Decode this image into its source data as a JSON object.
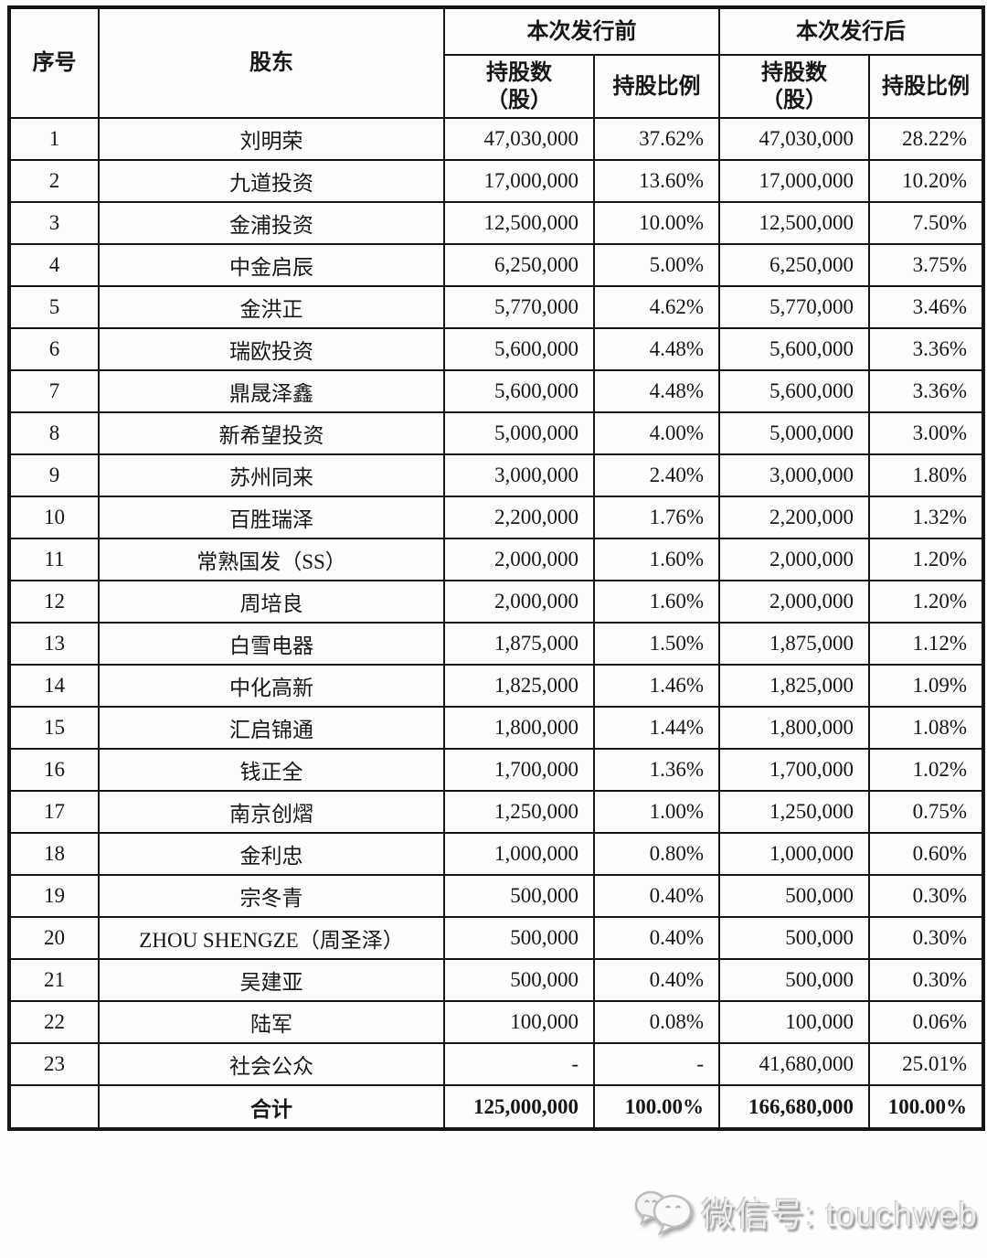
{
  "table": {
    "header": {
      "col_no": "序号",
      "col_shareholder": "股东",
      "group_before": "本次发行前",
      "group_after": "本次发行后",
      "shares_label": "持股数",
      "shares_unit": "（股）",
      "ratio_label": "持股比例"
    },
    "rows": [
      {
        "no": "1",
        "name": "刘明荣",
        "pre_shares": "47,030,000",
        "pre_ratio": "37.62%",
        "post_shares": "47,030,000",
        "post_ratio": "28.22%"
      },
      {
        "no": "2",
        "name": "九道投资",
        "pre_shares": "17,000,000",
        "pre_ratio": "13.60%",
        "post_shares": "17,000,000",
        "post_ratio": "10.20%"
      },
      {
        "no": "3",
        "name": "金浦投资",
        "pre_shares": "12,500,000",
        "pre_ratio": "10.00%",
        "post_shares": "12,500,000",
        "post_ratio": "7.50%"
      },
      {
        "no": "4",
        "name": "中金启辰",
        "pre_shares": "6,250,000",
        "pre_ratio": "5.00%",
        "post_shares": "6,250,000",
        "post_ratio": "3.75%"
      },
      {
        "no": "5",
        "name": "金洪正",
        "pre_shares": "5,770,000",
        "pre_ratio": "4.62%",
        "post_shares": "5,770,000",
        "post_ratio": "3.46%"
      },
      {
        "no": "6",
        "name": "瑞欧投资",
        "pre_shares": "5,600,000",
        "pre_ratio": "4.48%",
        "post_shares": "5,600,000",
        "post_ratio": "3.36%"
      },
      {
        "no": "7",
        "name": "鼎晟泽鑫",
        "pre_shares": "5,600,000",
        "pre_ratio": "4.48%",
        "post_shares": "5,600,000",
        "post_ratio": "3.36%"
      },
      {
        "no": "8",
        "name": "新希望投资",
        "pre_shares": "5,000,000",
        "pre_ratio": "4.00%",
        "post_shares": "5,000,000",
        "post_ratio": "3.00%"
      },
      {
        "no": "9",
        "name": "苏州同来",
        "pre_shares": "3,000,000",
        "pre_ratio": "2.40%",
        "post_shares": "3,000,000",
        "post_ratio": "1.80%"
      },
      {
        "no": "10",
        "name": "百胜瑞泽",
        "pre_shares": "2,200,000",
        "pre_ratio": "1.76%",
        "post_shares": "2,200,000",
        "post_ratio": "1.32%"
      },
      {
        "no": "11",
        "name": "常熟国发（SS）",
        "pre_shares": "2,000,000",
        "pre_ratio": "1.60%",
        "post_shares": "2,000,000",
        "post_ratio": "1.20%"
      },
      {
        "no": "12",
        "name": "周培良",
        "pre_shares": "2,000,000",
        "pre_ratio": "1.60%",
        "post_shares": "2,000,000",
        "post_ratio": "1.20%"
      },
      {
        "no": "13",
        "name": "白雪电器",
        "pre_shares": "1,875,000",
        "pre_ratio": "1.50%",
        "post_shares": "1,875,000",
        "post_ratio": "1.12%"
      },
      {
        "no": "14",
        "name": "中化高新",
        "pre_shares": "1,825,000",
        "pre_ratio": "1.46%",
        "post_shares": "1,825,000",
        "post_ratio": "1.09%"
      },
      {
        "no": "15",
        "name": "汇启锦通",
        "pre_shares": "1,800,000",
        "pre_ratio": "1.44%",
        "post_shares": "1,800,000",
        "post_ratio": "1.08%"
      },
      {
        "no": "16",
        "name": "钱正全",
        "pre_shares": "1,700,000",
        "pre_ratio": "1.36%",
        "post_shares": "1,700,000",
        "post_ratio": "1.02%"
      },
      {
        "no": "17",
        "name": "南京创熠",
        "pre_shares": "1,250,000",
        "pre_ratio": "1.00%",
        "post_shares": "1,250,000",
        "post_ratio": "0.75%"
      },
      {
        "no": "18",
        "name": "金利忠",
        "pre_shares": "1,000,000",
        "pre_ratio": "0.80%",
        "post_shares": "1,000,000",
        "post_ratio": "0.60%"
      },
      {
        "no": "19",
        "name": "宗冬青",
        "pre_shares": "500,000",
        "pre_ratio": "0.40%",
        "post_shares": "500,000",
        "post_ratio": "0.30%"
      },
      {
        "no": "20",
        "name": "ZHOU SHENGZE（周圣泽）",
        "pre_shares": "500,000",
        "pre_ratio": "0.40%",
        "post_shares": "500,000",
        "post_ratio": "0.30%"
      },
      {
        "no": "21",
        "name": "吴建亚",
        "pre_shares": "500,000",
        "pre_ratio": "0.40%",
        "post_shares": "500,000",
        "post_ratio": "0.30%"
      },
      {
        "no": "22",
        "name": "陆军",
        "pre_shares": "100,000",
        "pre_ratio": "0.08%",
        "post_shares": "100,000",
        "post_ratio": "0.06%"
      },
      {
        "no": "23",
        "name": "社会公众",
        "pre_shares": "-",
        "pre_ratio": "-",
        "post_shares": "41,680,000",
        "post_ratio": "25.01%"
      }
    ],
    "total": {
      "label": "合计",
      "pre_shares": "125,000,000",
      "pre_ratio": "100.00%",
      "post_shares": "166,680,000",
      "post_ratio": "100.00%"
    }
  },
  "watermark": {
    "icon": "wechat-icon",
    "text": "微信号: touchweb"
  }
}
